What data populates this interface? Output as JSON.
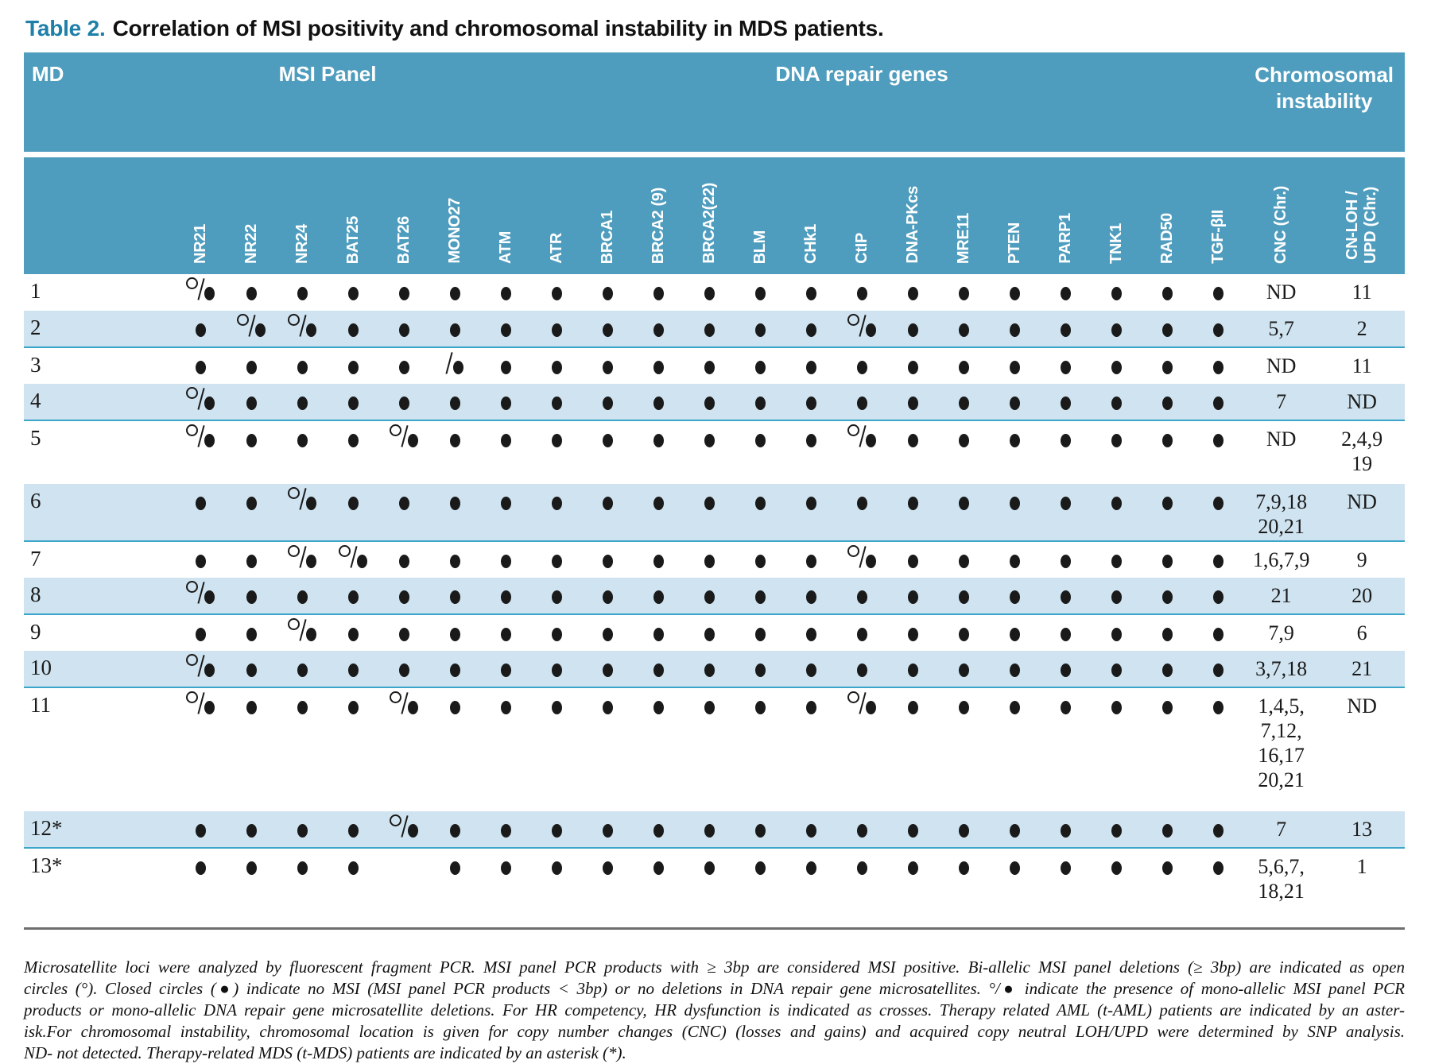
{
  "title": {
    "label": "Table 2.",
    "text": "Correlation of MSI positivity and chromosomal instability in MDS patients."
  },
  "table": {
    "group_headers": [
      {
        "label": "MD"
      },
      {
        "label": "MSI Panel"
      },
      {
        "label": "DNA repair genes"
      },
      {
        "label_line1": "Chromosomal",
        "label_line2": "instability"
      }
    ],
    "gene_columns": [
      "NR21",
      "NR22",
      "NR24",
      "BAT25",
      "BAT26",
      "MONO27",
      "ATM",
      "ATR",
      "BRCA1",
      "BRCA2 (9)",
      "BRCA2(22)",
      "BLM",
      "CHk1",
      "CtIP",
      "DNA-PKcs",
      "MRE11",
      "PTEN",
      "PARP1",
      "TNK1",
      "RAD50",
      "TGF-βII"
    ],
    "cnc_label": "CNC (Chr.)",
    "cnloh_label_lines": [
      "CN-LOH /",
      "UPD (Chr.)"
    ],
    "symbol_key": {
      "c": "closed-circle",
      "oc": "open-circle-slash-closed-circle",
      "sc": "slash-closed-circle",
      "": "blank"
    },
    "rows": [
      {
        "md": "1",
        "marks": [
          "oc",
          "c",
          "c",
          "c",
          "c",
          "c",
          "c",
          "c",
          "c",
          "c",
          "c",
          "c",
          "c",
          "c",
          "c",
          "c",
          "c",
          "c",
          "c",
          "c",
          "c"
        ],
        "cnc": [
          "ND"
        ],
        "cnloh": [
          "11"
        ]
      },
      {
        "md": "2",
        "marks": [
          "c",
          "oc",
          "oc",
          "c",
          "c",
          "c",
          "c",
          "c",
          "c",
          "c",
          "c",
          "c",
          "c",
          "oc",
          "c",
          "c",
          "c",
          "c",
          "c",
          "c",
          "c"
        ],
        "cnc": [
          "5,7"
        ],
        "cnloh": [
          "2"
        ]
      },
      {
        "md": "3",
        "marks": [
          "c",
          "c",
          "c",
          "c",
          "c",
          "sc",
          "c",
          "c",
          "c",
          "c",
          "c",
          "c",
          "c",
          "c",
          "c",
          "c",
          "c",
          "c",
          "c",
          "c",
          "c"
        ],
        "cnc": [
          "ND"
        ],
        "cnloh": [
          "11"
        ]
      },
      {
        "md": "4",
        "marks": [
          "oc",
          "c",
          "c",
          "c",
          "c",
          "c",
          "c",
          "c",
          "c",
          "c",
          "c",
          "c",
          "c",
          "c",
          "c",
          "c",
          "c",
          "c",
          "c",
          "c",
          "c"
        ],
        "cnc": [
          "7"
        ],
        "cnloh": [
          "ND"
        ]
      },
      {
        "md": "5",
        "marks": [
          "oc",
          "c",
          "c",
          "c",
          "oc",
          "c",
          "c",
          "c",
          "c",
          "c",
          "c",
          "c",
          "c",
          "oc",
          "c",
          "c",
          "c",
          "c",
          "c",
          "c",
          "c"
        ],
        "cnc": [
          "ND"
        ],
        "cnloh": [
          "2,4,9",
          "19"
        ]
      },
      {
        "md": "6",
        "marks": [
          "c",
          "c",
          "oc",
          "c",
          "c",
          "c",
          "c",
          "c",
          "c",
          "c",
          "c",
          "c",
          "c",
          "c",
          "c",
          "c",
          "c",
          "c",
          "c",
          "c",
          "c"
        ],
        "cnc": [
          "7,9,18",
          "20,21"
        ],
        "cnloh": [
          "ND"
        ]
      },
      {
        "md": "7",
        "marks": [
          "c",
          "c",
          "oc",
          "oc",
          "c",
          "c",
          "c",
          "c",
          "c",
          "c",
          "c",
          "c",
          "c",
          "oc",
          "c",
          "c",
          "c",
          "c",
          "c",
          "c",
          "c"
        ],
        "cnc": [
          "1,6,7,9"
        ],
        "cnloh": [
          "9"
        ]
      },
      {
        "md": "8",
        "marks": [
          "oc",
          "c",
          "c",
          "c",
          "c",
          "c",
          "c",
          "c",
          "c",
          "c",
          "c",
          "c",
          "c",
          "c",
          "c",
          "c",
          "c",
          "c",
          "c",
          "c",
          "c"
        ],
        "cnc": [
          "21"
        ],
        "cnloh": [
          "20"
        ]
      },
      {
        "md": "9",
        "marks": [
          "c",
          "c",
          "oc",
          "c",
          "c",
          "c",
          "c",
          "c",
          "c",
          "c",
          "c",
          "c",
          "c",
          "c",
          "c",
          "c",
          "c",
          "c",
          "c",
          "c",
          "c"
        ],
        "cnc": [
          "7,9"
        ],
        "cnloh": [
          "6"
        ]
      },
      {
        "md": "10",
        "marks": [
          "oc",
          "c",
          "c",
          "c",
          "c",
          "c",
          "c",
          "c",
          "c",
          "c",
          "c",
          "c",
          "c",
          "c",
          "c",
          "c",
          "c",
          "c",
          "c",
          "c",
          "c"
        ],
        "cnc": [
          "3,7,18"
        ],
        "cnloh": [
          "21"
        ]
      },
      {
        "md": "11",
        "marks": [
          "oc",
          "c",
          "c",
          "c",
          "oc",
          "c",
          "c",
          "c",
          "c",
          "c",
          "c",
          "c",
          "c",
          "oc",
          "c",
          "c",
          "c",
          "c",
          "c",
          "c",
          "c"
        ],
        "cnc": [
          "1,4,5,",
          "7,12,",
          "16,17",
          "20,21"
        ],
        "cnloh": [
          "ND"
        ]
      },
      {
        "md": "12*",
        "marks": [
          "c",
          "c",
          "c",
          "c",
          "oc",
          "c",
          "c",
          "c",
          "c",
          "c",
          "c",
          "c",
          "c",
          "c",
          "c",
          "c",
          "c",
          "c",
          "c",
          "c",
          "c"
        ],
        "cnc": [
          "7"
        ],
        "cnloh": [
          "13"
        ]
      },
      {
        "md": "13*",
        "marks": [
          "c",
          "c",
          "c",
          "c",
          "",
          "c",
          "c",
          "c",
          "c",
          "c",
          "c",
          "c",
          "c",
          "c",
          "c",
          "c",
          "c",
          "c",
          "c",
          "c",
          "c"
        ],
        "cnc": [
          "5,6,7,",
          "18,21"
        ],
        "cnloh": [
          "1"
        ]
      }
    ]
  },
  "footnote_lines": [
    "Microsatellite loci were analyzed by fluorescent fragment PCR. MSI panel PCR products with ≥ 3bp are considered MSI positive. Bi-allelic MSI panel deletions (≥ 3bp) are indicated as open",
    "circles (°). Closed circles (●) indicate no MSI (MSI panel PCR products < 3bp) or no deletions in DNA repair gene microsatellites. °/● indicate the presence of mono-allelic MSI panel PCR",
    "products or mono-allelic DNA repair gene microsatellite deletions.  For HR competency, HR dysfunction is indicated as crosses. Therapy related AML (t-AML) patients are indicated by an aster-",
    "isk.For chromosomal instability, chromosomal location is given for copy number changes (CNC) (losses and gains) and acquired copy neutral LOH/UPD were determined by SNP analysis.",
    "ND- not detected. Therapy-related MDS (t-MDS) patients are indicated by an asterisk (*)."
  ],
  "colors": {
    "header_teal": "#4f9dbe",
    "row_band_blue": "#cfe3f0",
    "row_divider_teal": "#3ba6c9",
    "title_accent": "#1e80a8",
    "symbol_black": "#1a1a1a"
  }
}
